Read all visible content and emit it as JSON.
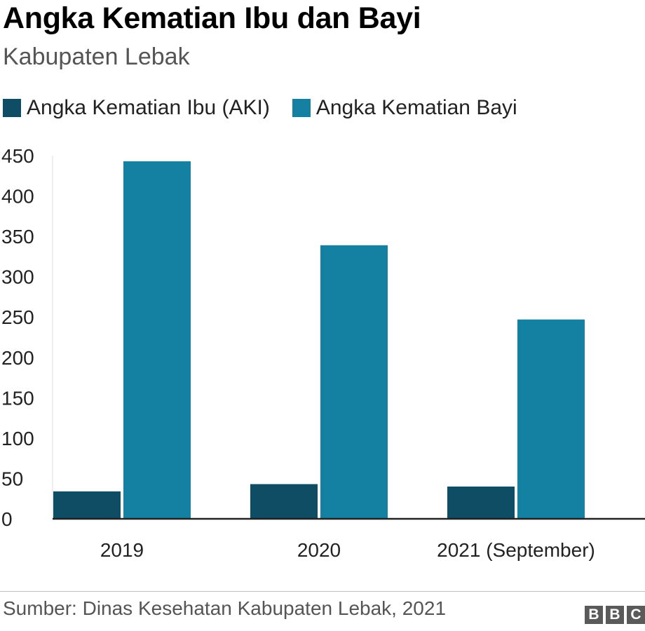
{
  "header": {
    "title": "Angka Kematian Ibu dan Bayi",
    "subtitle": "Kabupaten Lebak"
  },
  "legend": {
    "items": [
      {
        "label": "Angka Kematian Ibu (AKI)",
        "color": "#0e4d64"
      },
      {
        "label": "Angka Kematian Bayi",
        "color": "#1581a2"
      }
    ]
  },
  "chart_data": {
    "type": "bar",
    "categories": [
      "2019",
      "2020",
      "2021 (September)"
    ],
    "series": [
      {
        "name": "Angka Kematian Ibu (AKI)",
        "color": "#0e4d64",
        "values": [
          34,
          43,
          40
        ]
      },
      {
        "name": "Angka Kematian Bayi",
        "color": "#1581a2",
        "values": [
          443,
          339,
          247
        ]
      }
    ],
    "ylim": [
      0,
      450
    ],
    "yticks": [
      0,
      50,
      100,
      150,
      200,
      250,
      300,
      350,
      400,
      450
    ],
    "grid": false,
    "legend_position": "top-left"
  },
  "footer": {
    "source": "Sumber: Dinas Kesehatan Kabupaten Lebak, 2021",
    "logo": [
      "B",
      "B",
      "C"
    ]
  }
}
